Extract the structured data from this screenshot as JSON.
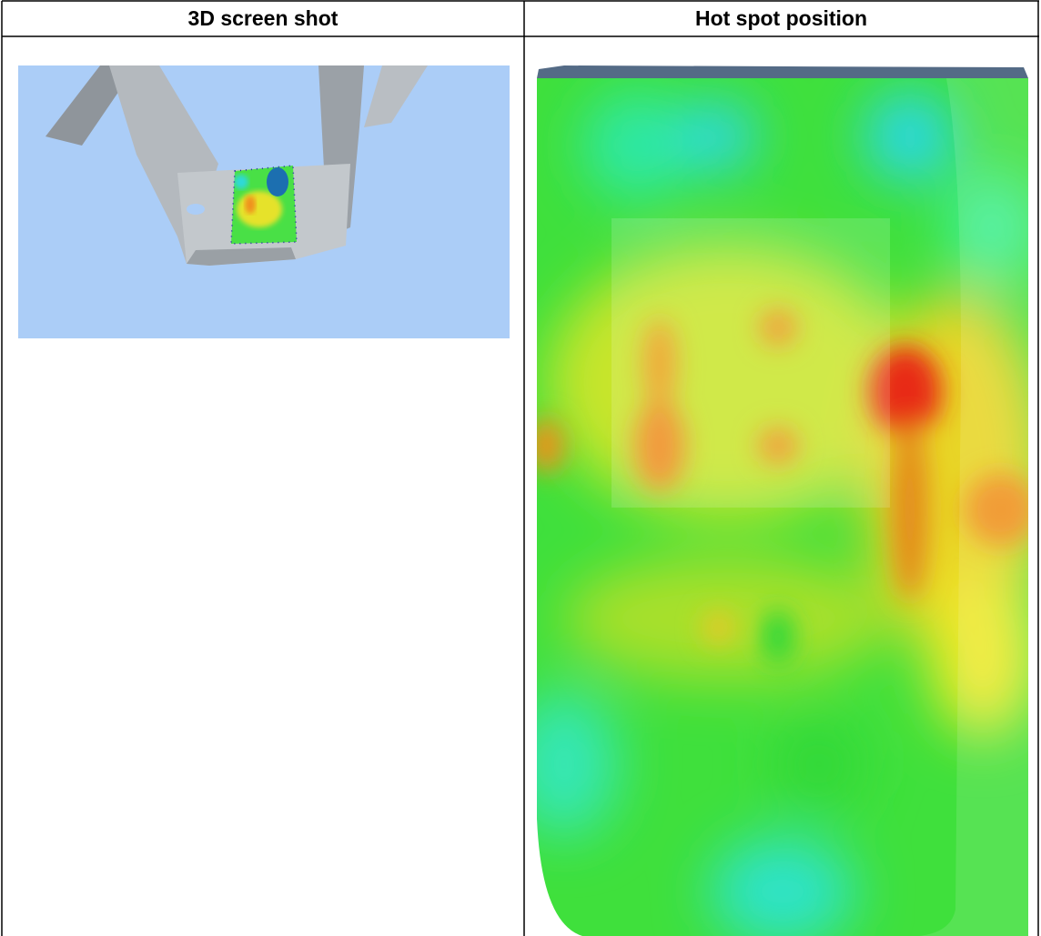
{
  "table": {
    "headers": [
      "3D screen shot",
      "Hot spot position"
    ]
  }
}
